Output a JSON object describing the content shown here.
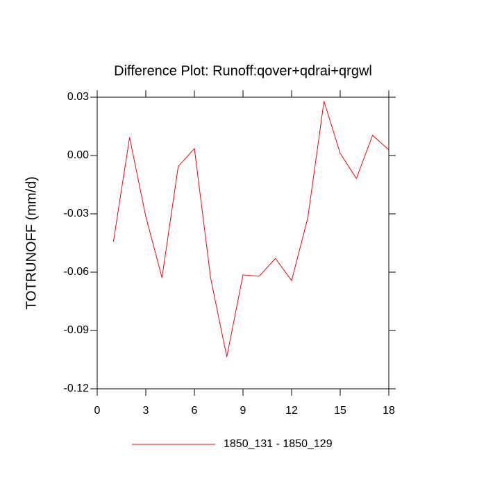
{
  "chart_data": {
    "type": "line",
    "title": "Difference Plot: Runoff:qover+qdrai+qrgwl",
    "y_label": "TOTRUNOFF  (mm/d)",
    "x": [
      1,
      2,
      3,
      4,
      5,
      6,
      7,
      8,
      9,
      10,
      11,
      12,
      13,
      14,
      15,
      16,
      17,
      18
    ],
    "series": [
      {
        "name": "1850_131 - 1850_129",
        "color": "#ff0000",
        "values": [
          -0.0443,
          0.0093,
          -0.0314,
          -0.0629,
          -0.0057,
          0.0036,
          -0.0629,
          -0.1036,
          -0.0614,
          -0.0621,
          -0.0529,
          -0.0643,
          -0.0321,
          0.0279,
          0.0011,
          -0.0118,
          0.0104,
          0.0029
        ]
      }
    ],
    "xlim": [
      0,
      18
    ],
    "xticks": [
      0,
      3,
      6,
      9,
      12,
      15,
      18
    ],
    "ylim": [
      -0.12,
      0.03
    ],
    "yticks": [
      -0.12,
      -0.09,
      -0.06,
      -0.03,
      {
        "value": 0,
        "label": "0.00"
      },
      0.03
    ],
    "grid": false
  }
}
